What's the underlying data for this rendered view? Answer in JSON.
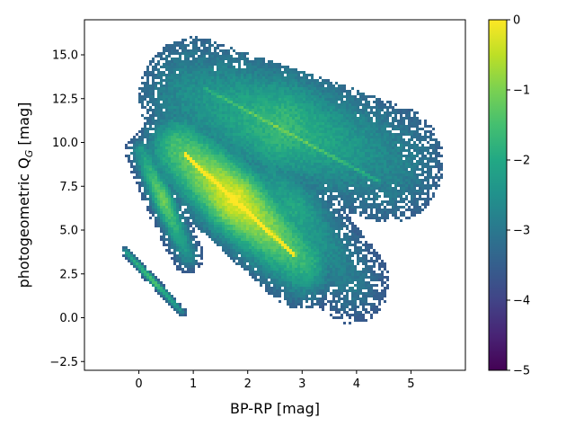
{
  "chart_data": {
    "type": "heatmap",
    "xlabel": "BP-RP [mag]",
    "ylabel_main": "photogeometric Q",
    "ylabel_sub": "G",
    "ylabel_tail": " [mag]",
    "xlim": [
      -1.0,
      6.0
    ],
    "ylim": [
      -3.0,
      17.0
    ],
    "x_ticks": [
      0,
      1,
      2,
      3,
      4,
      5
    ],
    "y_ticks": [
      -2.5,
      0.0,
      2.5,
      5.0,
      7.5,
      10.0,
      12.5,
      15.0
    ],
    "x_tick_labels": [
      "0",
      "1",
      "2",
      "3",
      "4",
      "5"
    ],
    "y_tick_labels": [
      "−2.5",
      "0.0",
      "2.5",
      "5.0",
      "7.5",
      "10.0",
      "12.5",
      "15.0"
    ],
    "colorbar": {
      "colormap": "viridis",
      "range": [
        -5,
        0
      ],
      "ticks": [
        0,
        -1,
        -2,
        -3,
        -4,
        -5
      ],
      "tick_labels": [
        "0",
        "−1",
        "−2",
        "−3",
        "−4",
        "−5"
      ]
    },
    "density_features": [
      {
        "feature": "main sequence band",
        "from": [
          0.8,
          9.3
        ],
        "to": [
          2.8,
          3.5
        ],
        "peak_log_density": 0
      },
      {
        "feature": "upper red sequence",
        "from": [
          1.2,
          13.0
        ],
        "to": [
          4.4,
          7.8
        ],
        "peak_log_density": -1.5
      },
      {
        "feature": "blue left sequence",
        "from": [
          0.0,
          9.5
        ],
        "to": [
          0.9,
          3.5
        ],
        "peak_log_density": -2
      },
      {
        "feature": "white dwarf sequence",
        "from": [
          -0.3,
          3.8
        ],
        "to": [
          0.8,
          0.3
        ],
        "peak_log_density": -2
      }
    ]
  }
}
